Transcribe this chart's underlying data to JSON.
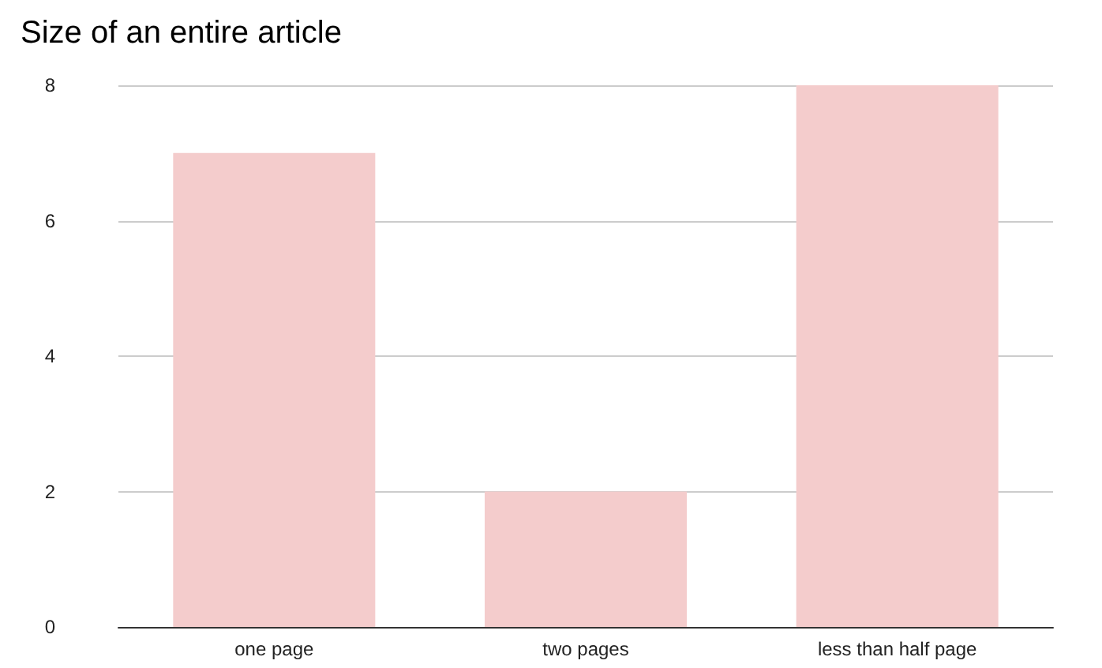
{
  "chart_data": {
    "type": "bar",
    "title": "Size of an entire article",
    "categories": [
      "one page",
      "two pages",
      "less than half page"
    ],
    "values": [
      7,
      2,
      8
    ],
    "color": "#f4cccc",
    "ylim": [
      0,
      8
    ],
    "yticks": [
      0,
      2,
      4,
      6,
      8
    ],
    "grid": "y"
  }
}
